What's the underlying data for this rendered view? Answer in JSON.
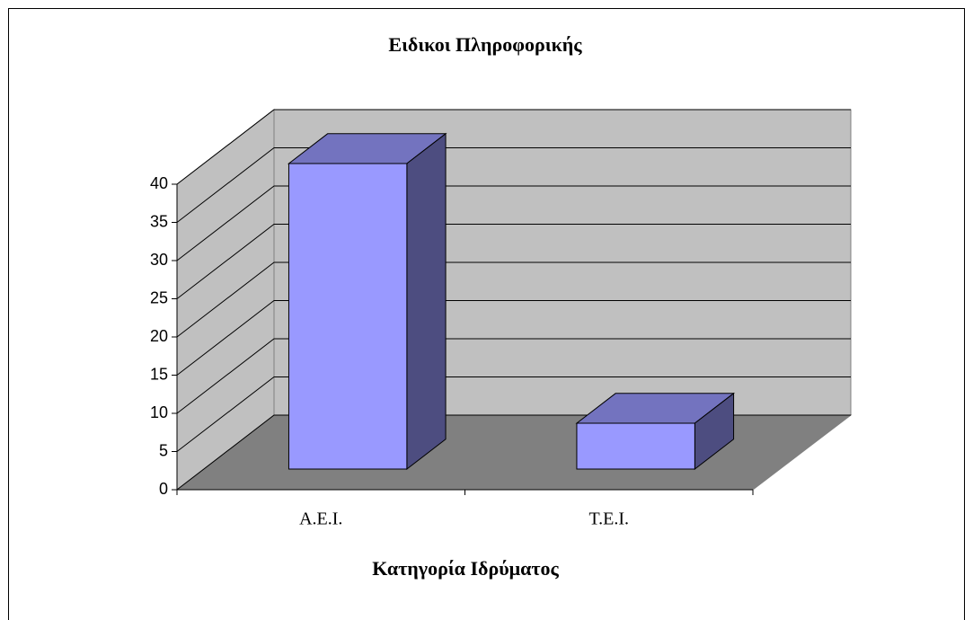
{
  "chart_data": {
    "type": "bar3d",
    "title": "Ειδικοι Πληροφορικής",
    "x_label": "Κατηγορία Ιδρύματος",
    "categories": [
      "Α.Ε.Ι.",
      "Τ.Ε.Ι."
    ],
    "values": [
      40,
      6
    ],
    "color": "#9999ff",
    "ylim": [
      0,
      40
    ],
    "yticks": [
      0,
      5,
      10,
      15,
      20,
      25,
      30,
      35,
      40
    ],
    "grid": true
  }
}
